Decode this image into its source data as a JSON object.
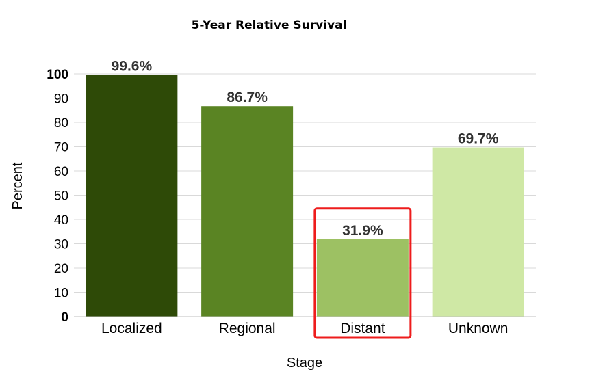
{
  "chart_data": {
    "type": "bar",
    "title": "5-Year Relative Survival",
    "xlabel": "Stage",
    "ylabel": "Percent",
    "categories": [
      "Localized",
      "Regional",
      "Distant",
      "Unknown"
    ],
    "values": [
      99.6,
      86.7,
      31.9,
      69.7
    ],
    "data_labels": [
      "99.6%",
      "86.7%",
      "31.9%",
      "69.7%"
    ],
    "colors": [
      "#2e4a07",
      "#5a8423",
      "#9dc163",
      "#cfe8a5"
    ],
    "yticks": [
      "0",
      "10",
      "20",
      "30",
      "40",
      "50",
      "60",
      "70",
      "80",
      "90",
      "100"
    ],
    "ylim": [
      0,
      100
    ],
    "grid": true,
    "highlight": {
      "category": "Distant",
      "color": "#ee1c1c"
    }
  }
}
